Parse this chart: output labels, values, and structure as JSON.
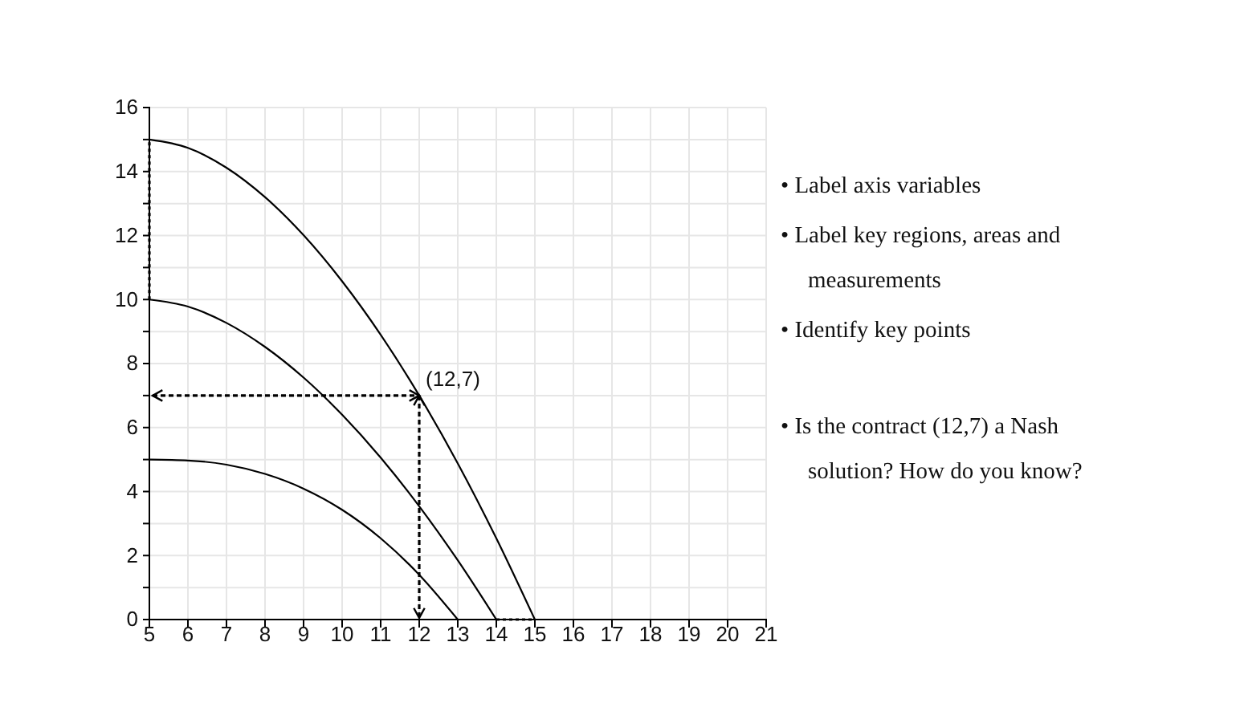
{
  "chart_data": {
    "type": "line",
    "xlim": [
      5,
      21
    ],
    "ylim": [
      0,
      16
    ],
    "xticks": [
      5,
      6,
      7,
      8,
      9,
      10,
      11,
      12,
      13,
      14,
      15,
      16,
      17,
      18,
      19,
      20,
      21
    ],
    "yticks": [
      0,
      {
        "value": 1,
        "label": null
      },
      2,
      {
        "value": 3,
        "label": null
      },
      4,
      {
        "value": 5,
        "label": null
      },
      6,
      {
        "value": 7,
        "label": null
      },
      8,
      {
        "value": 9,
        "label": null
      },
      10,
      {
        "value": 11,
        "label": null
      },
      12,
      {
        "value": 13,
        "label": null
      },
      14,
      {
        "value": 15,
        "label": null
      },
      16
    ],
    "grid": true,
    "marker": "none",
    "line_style": "solid",
    "series": [
      {
        "color": "#000000",
        "x": [
          5,
          6,
          7,
          8,
          9,
          10,
          11,
          12,
          13,
          14,
          15
        ],
        "values": [
          15,
          14.74,
          14.12,
          13.2,
          12.01,
          10.57,
          8.9,
          7,
          4.88,
          2.54,
          0
        ]
      },
      {
        "color": "#000000",
        "x": [
          5,
          6,
          7,
          8,
          9,
          10,
          11,
          12,
          13,
          14
        ],
        "values": [
          10,
          9.78,
          9.27,
          8.52,
          7.56,
          6.4,
          5.06,
          3.54,
          1.85,
          0
        ]
      },
      {
        "color": "#000000",
        "x": [
          5,
          6,
          7,
          8,
          9,
          10,
          11,
          12,
          13
        ],
        "values": [
          5,
          4.97,
          4.84,
          4.55,
          4.09,
          3.43,
          2.54,
          1.4,
          0
        ]
      },
      {
        "color": "#000000",
        "x": [
          5,
          5
        ],
        "values": [
          10,
          15
        ],
        "line_style": "dotted"
      },
      {
        "color": "#000000",
        "x": [
          14,
          15
        ],
        "values": [
          0,
          0
        ],
        "line_style": "dotted"
      }
    ],
    "annotations": [
      {
        "text": "(12,7)",
        "x": 12,
        "y": 7
      },
      "• Label axis variables",
      "• Label key regions, areas and measurements",
      "• Identify key points",
      "• Is the contract (12,7) a Nash solution? How do you know?"
    ]
  }
}
